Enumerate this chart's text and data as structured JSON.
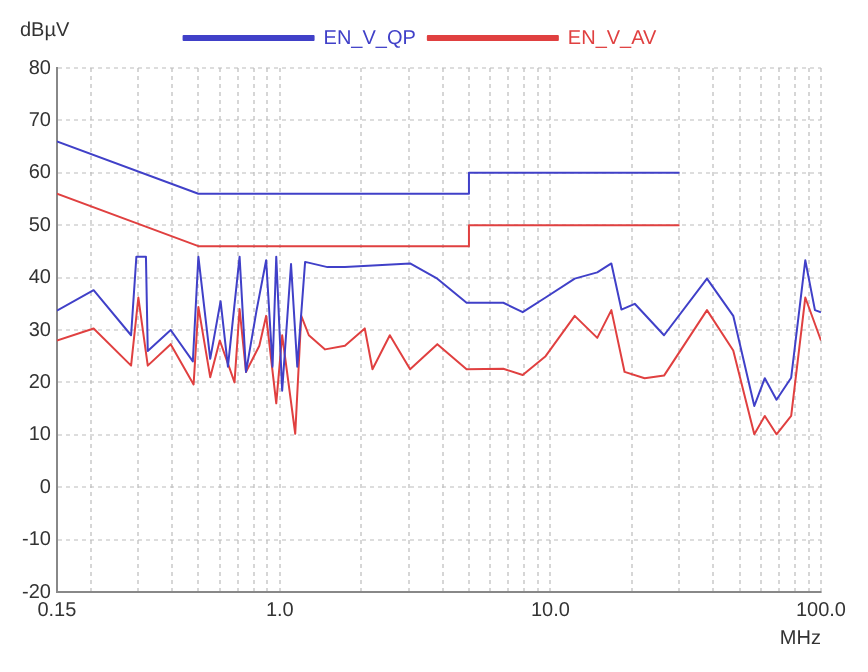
{
  "chart_data": {
    "type": "line",
    "xlabel": "MHz",
    "ylabel": "dBµV",
    "log": "x",
    "grid": true,
    "legend": "top",
    "marker": "none",
    "line_style": "solid",
    "xlim": [
      0.15,
      100
    ],
    "ylim": [
      -20,
      80
    ],
    "xticks": [
      {
        "value": 0.15,
        "label": "0.15"
      },
      {
        "value": 0.2,
        "label": null
      },
      {
        "value": 0.3,
        "label": null
      },
      {
        "value": 0.4,
        "label": null
      },
      {
        "value": 0.5,
        "label": null
      },
      {
        "value": 0.6,
        "label": null
      },
      {
        "value": 0.7,
        "label": null
      },
      {
        "value": 0.8,
        "label": null
      },
      {
        "value": 0.9,
        "label": null
      },
      {
        "value": 1,
        "label": "1.0"
      },
      {
        "value": 2,
        "label": null
      },
      {
        "value": 3,
        "label": null
      },
      {
        "value": 4,
        "label": null
      },
      {
        "value": 5,
        "label": null
      },
      {
        "value": 6,
        "label": null
      },
      {
        "value": 7,
        "label": null
      },
      {
        "value": 8,
        "label": null
      },
      {
        "value": 9,
        "label": null
      },
      {
        "value": 10,
        "label": "10.0"
      },
      {
        "value": 20,
        "label": null
      },
      {
        "value": 30,
        "label": null
      },
      {
        "value": 40,
        "label": null
      },
      {
        "value": 50,
        "label": null
      },
      {
        "value": 60,
        "label": null
      },
      {
        "value": 70,
        "label": null
      },
      {
        "value": 80,
        "label": null
      },
      {
        "value": 90,
        "label": null
      },
      {
        "value": 100,
        "label": "100.0"
      }
    ],
    "yticks": [
      -20,
      -10,
      0,
      10,
      20,
      30,
      40,
      50,
      60,
      70,
      80
    ],
    "series": [
      {
        "name": "EN_V_QP",
        "color": "#4040c8",
        "x": [
          0.15,
          0.5,
          5,
          5,
          30
        ],
        "values": [
          66,
          56,
          56,
          60,
          60
        ]
      },
      {
        "name": "EN_V_AV",
        "color": "#e04040",
        "x": [
          0.15,
          0.5,
          5,
          5,
          30
        ],
        "values": [
          56,
          46,
          46,
          50,
          50
        ]
      },
      {
        "color": "#4040c8",
        "x": [
          0.15,
          0.205,
          0.282,
          0.295,
          0.32,
          0.325,
          0.395,
          0.477,
          0.5,
          0.553,
          0.604,
          0.643,
          0.71,
          0.75,
          0.82,
          0.89,
          0.94,
          0.97,
          1.02,
          1.1,
          1.16,
          1.24,
          1.5,
          1.74,
          3.03,
          3.82,
          4.9,
          6.7,
          7.9,
          9.6,
          12.3,
          14.9,
          16.8,
          18.3,
          20.5,
          26.3,
          37.9,
          47.4,
          56.7,
          62,
          68.5,
          77.6,
          87.5,
          95,
          100
        ],
        "values": [
          33.7,
          37.6,
          29,
          44,
          44,
          26,
          30,
          24,
          44,
          24.5,
          35.5,
          23,
          44,
          22,
          33.7,
          43.3,
          23,
          44,
          18.4,
          42.6,
          23,
          43,
          42,
          42,
          42.7,
          39.8,
          35.2,
          35.2,
          33.4,
          36.2,
          39.8,
          41,
          42.7,
          33.9,
          35,
          29,
          39.8,
          32.7,
          15.5,
          20.8,
          16.7,
          20.9,
          43.3,
          33.8,
          33.4
        ]
      },
      {
        "color": "#e04040",
        "x": [
          0.15,
          0.205,
          0.282,
          0.3,
          0.325,
          0.395,
          0.48,
          0.5,
          0.553,
          0.6,
          0.68,
          0.71,
          0.75,
          0.84,
          0.89,
          0.97,
          1.02,
          1.14,
          1.2,
          1.28,
          1.47,
          1.74,
          2.06,
          2.2,
          2.55,
          3.03,
          3.82,
          4.9,
          6.7,
          7.9,
          9.6,
          12.3,
          14.9,
          16.8,
          18.8,
          22.3,
          26.3,
          37.9,
          47.4,
          56.7,
          62,
          68.5,
          77.6,
          87.5,
          100
        ],
        "values": [
          28,
          30.3,
          23.2,
          36.2,
          23.2,
          27.3,
          19.6,
          34.4,
          21,
          28,
          20,
          34,
          22,
          27,
          32.7,
          16,
          29,
          10.2,
          32.7,
          29,
          26.3,
          27,
          30.3,
          22.5,
          29,
          22.5,
          27.3,
          22.5,
          22.6,
          21.4,
          25,
          32.7,
          28.5,
          33.8,
          22,
          20.8,
          21.3,
          33.8,
          26.1,
          10.1,
          13.6,
          10.1,
          13.6,
          36.2,
          28
        ]
      }
    ]
  }
}
